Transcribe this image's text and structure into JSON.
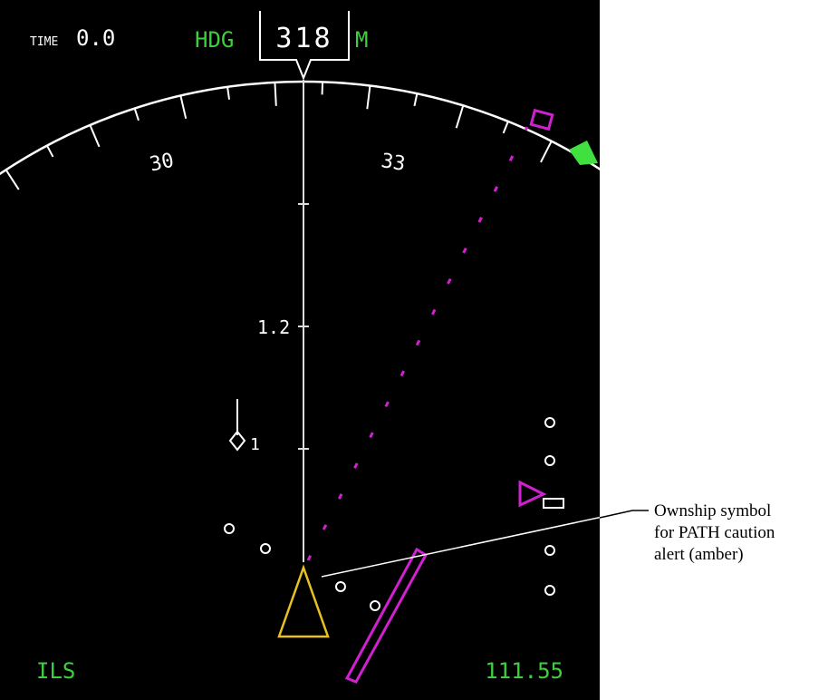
{
  "display": {
    "time_label": "TIME",
    "time_value": "0.0",
    "heading_label": "HDG",
    "heading_value": "318",
    "heading_ref": "M",
    "compass_labels": [
      "30",
      "33"
    ],
    "range_label": "1.2",
    "traffic_label": "1",
    "nav_mode": "ILS",
    "frequency": "111.55"
  },
  "annotation": {
    "lines": [
      "Ownship symbol",
      "for PATH caution",
      "alert (amber)"
    ]
  }
}
